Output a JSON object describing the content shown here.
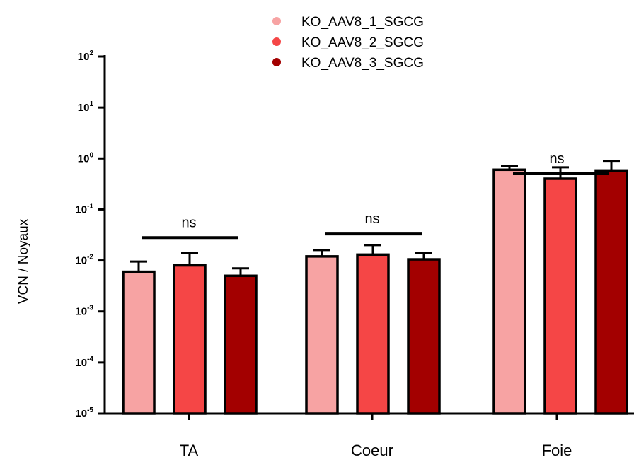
{
  "chart_data": {
    "type": "bar",
    "ylabel": "VCN / Noyaux",
    "yscale": "log",
    "ylim": [
      1e-05,
      100
    ],
    "yticks": [
      {
        "base": "10",
        "exp": "2"
      },
      {
        "base": "10",
        "exp": "1"
      },
      {
        "base": "10",
        "exp": "0"
      },
      {
        "base": "10",
        "exp": "-1"
      },
      {
        "base": "10",
        "exp": "-2"
      },
      {
        "base": "10",
        "exp": "-3"
      },
      {
        "base": "10",
        "exp": "-4"
      },
      {
        "base": "10",
        "exp": "-5"
      }
    ],
    "categories": [
      "TA",
      "Coeur",
      "Foie"
    ],
    "legend_position": "top",
    "series": [
      {
        "name": "KO_AAV8_1_SGCG",
        "color": "#f7a3a3",
        "values": [
          0.006,
          0.012,
          0.6
        ],
        "errors": [
          0.0095,
          0.016,
          0.7
        ]
      },
      {
        "name": "KO_AAV8_2_SGCG",
        "color": "#f54646",
        "values": [
          0.008,
          0.013,
          0.4
        ],
        "errors": [
          0.014,
          0.02,
          0.67
        ]
      },
      {
        "name": "KO_AAV8_3_SGCG",
        "color": "#a30000",
        "values": [
          0.005,
          0.0105,
          0.58
        ],
        "errors": [
          0.007,
          0.0142,
          0.9
        ]
      }
    ],
    "annotations": [
      {
        "category": "TA",
        "text": "ns",
        "y": 0.028
      },
      {
        "category": "Coeur",
        "text": "ns",
        "y": 0.033
      },
      {
        "category": "Foie",
        "text": "ns",
        "y": 0.5
      }
    ]
  }
}
